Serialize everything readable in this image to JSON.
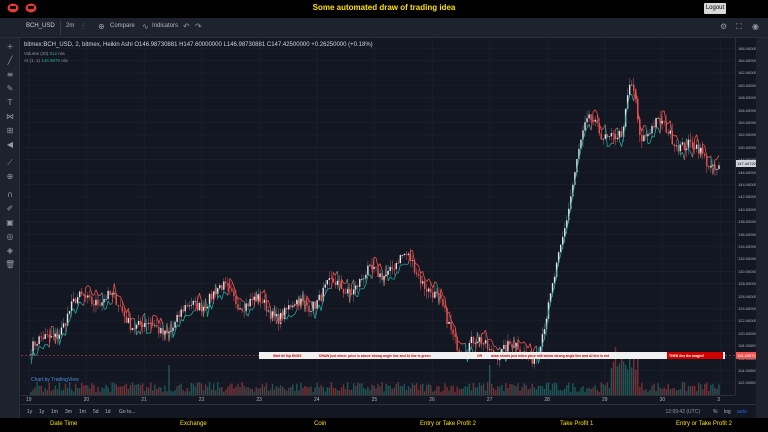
{
  "app": {
    "title": "Some automated draw of trading idea",
    "logout_label": "Logout"
  },
  "toolbar": {
    "symbol": "BCH_USD",
    "interval": "2m",
    "compare_label": "Compare",
    "indicators_label": "Indicators"
  },
  "legend": {
    "title": "bitmex:BCH_USD, 2, bitmex, Heikin Ashi",
    "open": "O146.98730881",
    "high": "H147.60000000",
    "low": "L146.98730881",
    "close": "C147.42500000",
    "change": "+0.26250000 (+0.18%)",
    "volume_label": "Volume (20)",
    "volume_value": "812",
    "volume_na": "n/a",
    "ai_label": "AI (1, 1)",
    "ai_green": "145.9870",
    "ai_na": "n/a"
  },
  "price_axis": {
    "labels": [
      "166.00000000",
      "164.00000000",
      "162.00000000",
      "160.00000000",
      "158.00000000",
      "156.00000000",
      "154.00000000",
      "152.00000000",
      "150.00000000",
      "148.00000000",
      "146.00000000",
      "144.00000000",
      "142.00000000",
      "140.00000000",
      "138.00000000",
      "136.00000000",
      "134.00000000",
      "132.00000000",
      "130.00000000",
      "128.00000000",
      "126.00000000",
      "124.00000000",
      "122.00000000",
      "120.00000000",
      "118.00000000",
      "116.00000000",
      "114.00000000",
      "112.00000000"
    ],
    "last_price": "147.44722184",
    "marker_price": "116.40570761"
  },
  "time_axis": {
    "labels": [
      "19",
      "20",
      "21",
      "22",
      "23",
      "24",
      "25",
      "26",
      "27",
      "28",
      "29",
      "30",
      "3"
    ]
  },
  "annotation": {
    "segments": [
      "Wait till flip ENGS",
      "DRAW just when: price is above strong angle line and AI line is green",
      "OR",
      "draw shorts just when price still below strong angle line and AI line is red",
      "THEN See the magic!!"
    ]
  },
  "powered_by": "Chart by TradingView",
  "rangebar": {
    "ranges": [
      "1y",
      "1y",
      "1m",
      "3m",
      "1m",
      "5d",
      "1d",
      "Go to..."
    ],
    "clock": "12:09:42 (UTC)",
    "pct": "%",
    "log": "log",
    "auto": "auto"
  },
  "footer": {
    "columns": [
      "Date Time",
      "Exchange",
      "Coin",
      "Entry or Take Profit 2",
      "Take Profit 1",
      "Entry or Take Profit 2"
    ]
  },
  "colors": {
    "accent": "#ffe000",
    "up": "#26a69a",
    "down": "#ef5350",
    "candle_up": "#e0e3eb",
    "candle_down": "#ef5350",
    "bg": "#131722"
  },
  "chart_data": {
    "type": "candlestick",
    "price_range": [
      111,
      167
    ],
    "series_close_approx": [
      {
        "day": 19,
        "close": 117.5
      },
      {
        "day": 20,
        "close": 126.0
      },
      {
        "day": 21,
        "close": 120.5
      },
      {
        "day": 22,
        "close": 126.5
      },
      {
        "day": 23,
        "close": 123.5
      },
      {
        "day": 24,
        "close": 127.5
      },
      {
        "day": 25,
        "close": 131.5
      },
      {
        "day": 26,
        "close": 118.0
      },
      {
        "day": 27,
        "close": 117.0
      },
      {
        "day": 28,
        "close": 150.0
      },
      {
        "day": 29,
        "close": 153.0
      },
      {
        "day": 30,
        "close": 147.4
      }
    ]
  }
}
